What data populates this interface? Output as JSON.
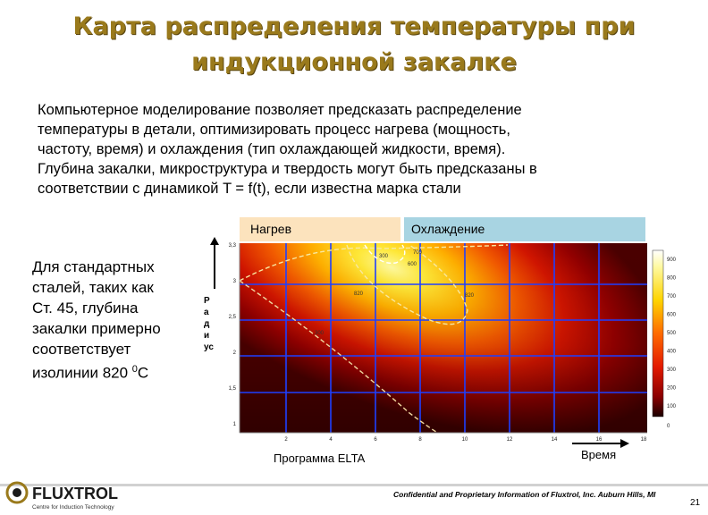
{
  "slide": {
    "title_line1": "Карта распределения температуры при",
    "title_line2": "индукционной закалке",
    "intro_lines": [
      "Компьютерное моделирование позволяет предсказать распределение",
      "температуры в детали, оптимизировать процесс нагрева (мощность,",
      "частоту, время) и охлаждения (тип охлаждающей жидкости, время).",
      "Глубина закалки, микроструктура и твердость могут быть предсказаны в",
      "соответствии с динамикой T = f(t), если известна марка стали"
    ],
    "side_lines": [
      "Для стандартных",
      "сталей, таких как",
      "Ст. 45, глубина",
      "закалки примерно",
      "соответствует"
    ],
    "side_last_prefix": "изолинии 820 ",
    "side_sup": "0",
    "side_last_suffix": "C"
  },
  "chart": {
    "tab_heat": "Нагрев",
    "tab_cool": "Охлаждение",
    "y_label_letters": [
      "Р",
      "а",
      "д",
      "и",
      "ус"
    ],
    "y_ticks": [
      "3,3",
      "3",
      "2,5",
      "2",
      "1,5",
      "1"
    ],
    "x_ticks": [
      "2",
      "4",
      "6",
      "8",
      "10",
      "12",
      "14",
      "16",
      "18"
    ],
    "colorbar_ticks": [
      "900",
      "800",
      "700",
      "600",
      "500",
      "400",
      "300",
      "200",
      "100"
    ],
    "colorbar_bottom": "0",
    "contour_labels": [
      "300",
      "600",
      "700",
      "820",
      "820",
      "300"
    ],
    "program_label": "Программа ELTA",
    "time_label": "Время"
  },
  "footer": {
    "logo_text": "FLUXTROL",
    "logo_sub": "Centre for Induction Technology",
    "confidential": "Confidential and Proprietary Information of Fluxtrol, Inc. Auburn Hills, MI",
    "page": "21"
  },
  "colors": {
    "title": "#9a7a1c",
    "tab_heat": "#fce3bd",
    "tab_cool": "#a8d4e2"
  }
}
